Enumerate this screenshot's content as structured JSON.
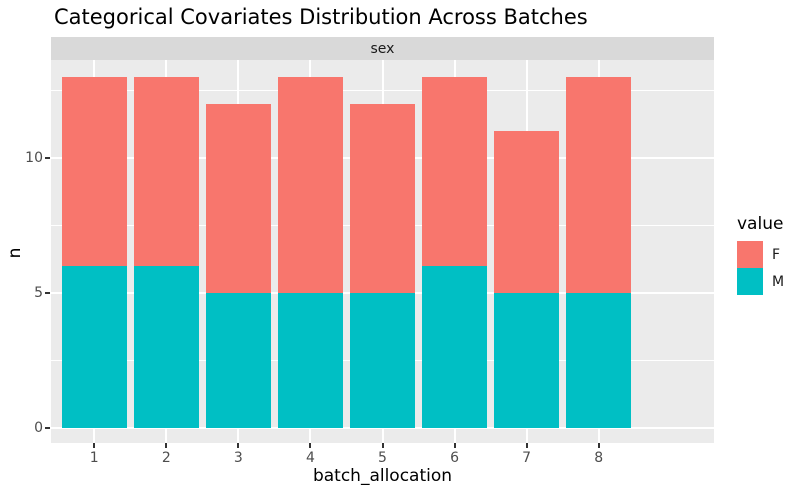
{
  "title": "Categorical Covariates Distribution Across Batches",
  "facet_label": "sex",
  "axes": {
    "x_title": "batch_allocation",
    "y_title": "n",
    "x_tick_labels": [
      "1",
      "2",
      "3",
      "4",
      "5",
      "6",
      "7",
      "8"
    ],
    "y_tick_values": [
      0,
      5,
      10
    ],
    "y_tick_labels": [
      "0",
      "5",
      "10"
    ],
    "y_minor_values": [
      2.5,
      7.5,
      12.5
    ]
  },
  "legend": {
    "title": "value",
    "entries": [
      {
        "label": "F",
        "color": "#F8766D"
      },
      {
        "label": "M",
        "color": "#00BFC4"
      }
    ]
  },
  "colors": {
    "F": "#F8766D",
    "M": "#00BFC4",
    "panel_bg": "#EBEBEB",
    "strip_bg": "#D9D9D9",
    "gridline": "#FFFFFF",
    "tick_label": "#4D4D4D",
    "tick_mark": "#333333",
    "text": "#000000"
  },
  "chart_data": {
    "type": "bar",
    "stacked": true,
    "title": "Categorical Covariates Distribution Across Batches",
    "facet": "sex",
    "xlabel": "batch_allocation",
    "ylabel": "n",
    "categories": [
      "1",
      "2",
      "3",
      "4",
      "5",
      "6",
      "7",
      "8"
    ],
    "series": [
      {
        "name": "M",
        "color": "#00BFC4",
        "values": [
          6,
          6,
          5,
          5,
          5,
          6,
          5,
          5
        ]
      },
      {
        "name": "F",
        "color": "#F8766D",
        "values": [
          7,
          7,
          7,
          8,
          7,
          7,
          6,
          8
        ]
      }
    ],
    "totals": [
      13,
      13,
      12,
      13,
      12,
      13,
      11,
      13
    ],
    "ylim": [
      0,
      13.65
    ],
    "yticks": [
      0,
      5,
      10
    ],
    "grid": true,
    "legend_title": "value",
    "legend_position": "right"
  }
}
